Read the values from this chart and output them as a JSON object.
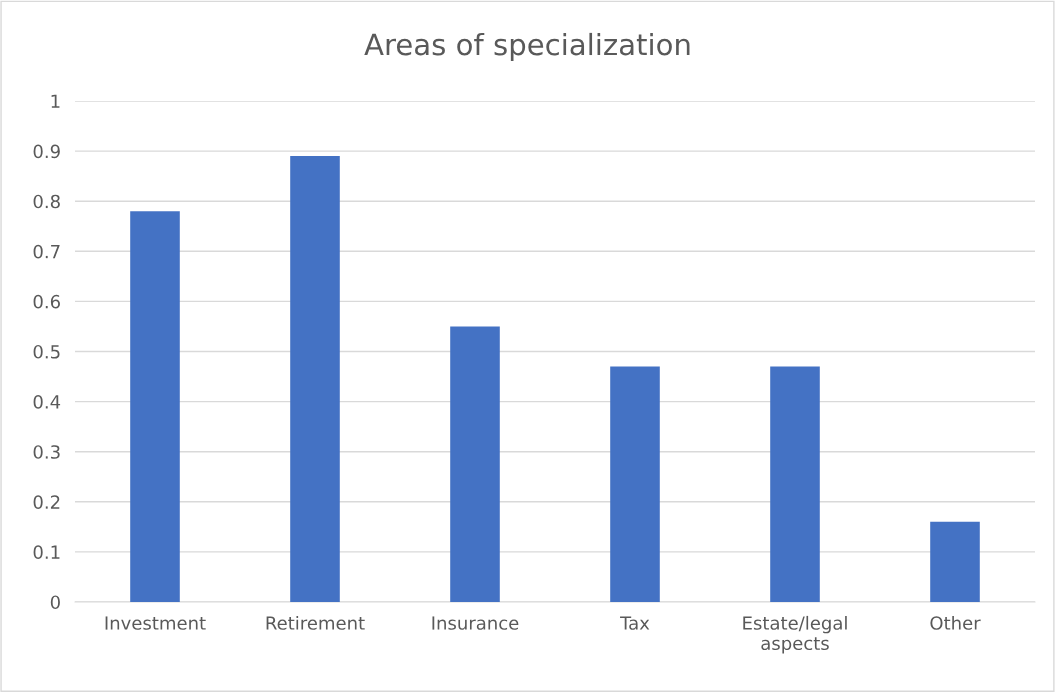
{
  "chart_data": {
    "type": "bar",
    "title": "Areas of specialization",
    "categories": [
      "Investment",
      "Retirement",
      "Insurance",
      "Tax",
      "Estate/legal aspects",
      "Other"
    ],
    "values": [
      0.78,
      0.89,
      0.55,
      0.47,
      0.47,
      0.16
    ],
    "color": "#4472c4",
    "ylim": [
      0,
      1
    ],
    "yticks": [
      0,
      0.1,
      0.2,
      0.3,
      0.4,
      0.5,
      0.6,
      0.7,
      0.8,
      0.9,
      1
    ],
    "grid": "y",
    "legend": false
  }
}
